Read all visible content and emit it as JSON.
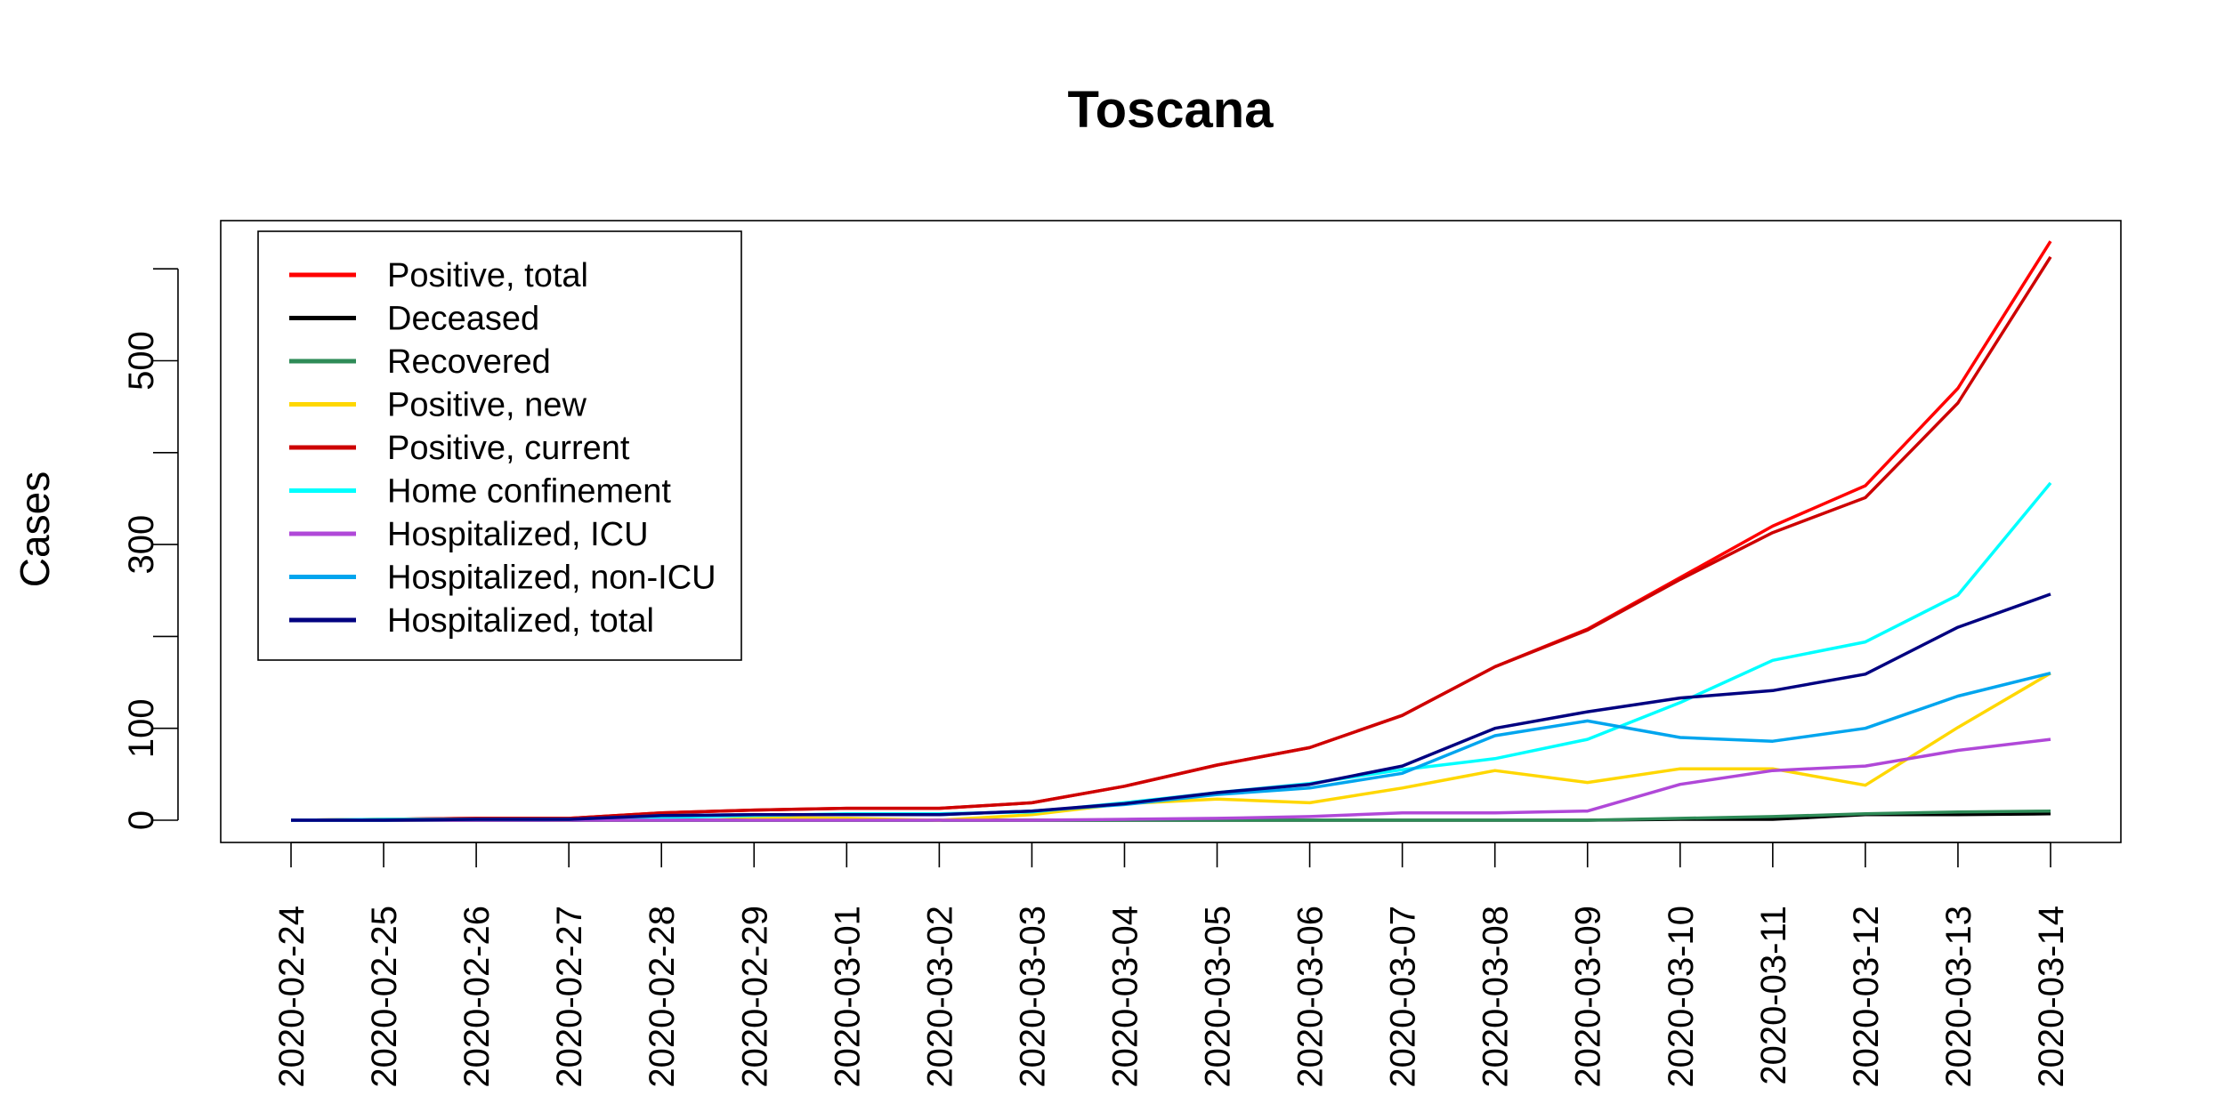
{
  "chart_data": {
    "type": "line",
    "title": "Toscana",
    "xlabel": "",
    "ylabel": "Cases",
    "ylim": [
      0,
      600
    ],
    "yticks": [
      0,
      100,
      300,
      500
    ],
    "legend_position": "top-left",
    "grid": false,
    "x": [
      "2020-02-24",
      "2020-02-25",
      "2020-02-26",
      "2020-02-27",
      "2020-02-28",
      "2020-02-29",
      "2020-03-01",
      "2020-03-02",
      "2020-03-03",
      "2020-03-04",
      "2020-03-05",
      "2020-03-06",
      "2020-03-07",
      "2020-03-08",
      "2020-03-09",
      "2020-03-10",
      "2020-03-11",
      "2020-03-12",
      "2020-03-13",
      "2020-03-14"
    ],
    "series": [
      {
        "name": "Positive, total",
        "color": "#ff0000",
        "values": [
          0,
          1,
          2,
          2,
          8,
          11,
          13,
          13,
          19,
          37,
          60,
          79,
          114,
          167,
          208,
          264,
          320,
          364,
          470,
          630
        ]
      },
      {
        "name": "Deceased",
        "color": "#000000",
        "values": [
          0,
          0,
          0,
          0,
          0,
          0,
          0,
          0,
          0,
          0,
          0,
          0,
          0,
          0,
          0,
          1,
          1,
          6,
          6,
          7
        ]
      },
      {
        "name": "Recovered",
        "color": "#2e8b57",
        "values": [
          0,
          0,
          0,
          0,
          0,
          0,
          0,
          0,
          0,
          0,
          0,
          0,
          0,
          0,
          0,
          2,
          4,
          7,
          9,
          10
        ]
      },
      {
        "name": "Positive, new",
        "color": "#ffd700",
        "values": [
          0,
          1,
          1,
          0,
          6,
          3,
          2,
          0,
          6,
          18,
          23,
          19,
          35,
          54,
          41,
          56,
          56,
          38,
          101,
          160
        ]
      },
      {
        "name": "Positive, current",
        "color": "#cd0000",
        "values": [
          0,
          1,
          2,
          2,
          8,
          11,
          13,
          13,
          19,
          37,
          60,
          79,
          114,
          167,
          207,
          262,
          313,
          351,
          454,
          613
        ]
      },
      {
        "name": "Home confinement",
        "color": "#00ffff",
        "values": [
          0,
          1,
          1,
          1,
          3,
          5,
          7,
          7,
          9,
          19,
          30,
          40,
          55,
          67,
          88,
          128,
          174,
          194,
          245,
          367
        ]
      },
      {
        "name": "Hospitalized, ICU",
        "color": "#b048d8",
        "values": [
          0,
          0,
          0,
          0,
          0,
          0,
          0,
          0,
          0,
          1,
          2,
          4,
          8,
          8,
          10,
          39,
          54,
          59,
          76,
          88
        ]
      },
      {
        "name": "Hospitalized, non-ICU",
        "color": "#00a5ee",
        "values": [
          0,
          0,
          1,
          1,
          5,
          6,
          6,
          6,
          10,
          17,
          28,
          35,
          51,
          92,
          108,
          90,
          86,
          100,
          135,
          160
        ]
      },
      {
        "name": "Hospitalized, total",
        "color": "#000080",
        "values": [
          0,
          0,
          1,
          1,
          5,
          6,
          6,
          6,
          10,
          18,
          30,
          39,
          59,
          100,
          118,
          133,
          141,
          159,
          210,
          246
        ]
      }
    ]
  }
}
